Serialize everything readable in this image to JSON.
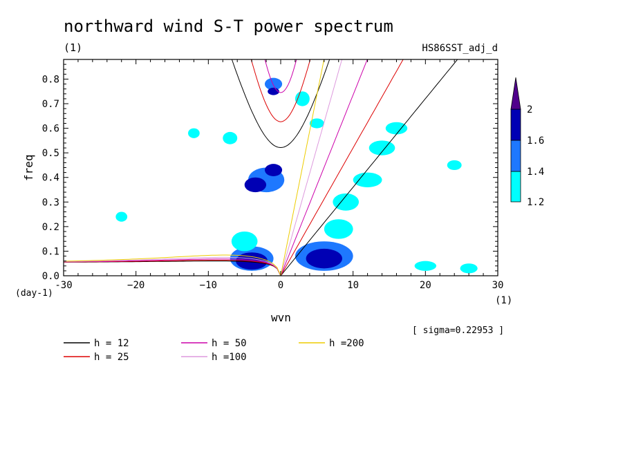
{
  "chart_data": {
    "type": "heatmap",
    "title": "northward wind S-T power spectrum",
    "subtitle_left": "(1)",
    "subtitle_right": "HS86SST_adj_d",
    "xlabel": "wvn",
    "x_unit": "(1)",
    "ylabel": "freq",
    "y_unit": "(day-1)",
    "xlim": [
      -30,
      30
    ],
    "ylim": [
      0,
      0.88
    ],
    "x_ticks": [
      -30,
      -20,
      -10,
      0,
      10,
      20,
      30
    ],
    "x_tick_labels": [
      "-30",
      "−20",
      "−10",
      "0",
      "10",
      "20",
      "30"
    ],
    "y_ticks": [
      0,
      0.1,
      0.2,
      0.3,
      0.4,
      0.5,
      0.6,
      0.7,
      0.8
    ],
    "y_tick_labels": [
      "0.0",
      "0.1",
      "0.2",
      "0.3",
      "0.4",
      "0.5",
      "0.6",
      "0.7",
      "0.8"
    ],
    "sigma_text": "[ sigma=0.22953 ]",
    "colorbar": {
      "levels": [
        1.2,
        1.4,
        1.6,
        2
      ],
      "level_labels": [
        "1.2",
        "1.4",
        "1.6",
        "2"
      ],
      "colors": [
        "#00ffff",
        "#1e78ff",
        "#0000b4",
        "#50008c"
      ]
    },
    "blobs": [
      {
        "x": -2,
        "y": 0.39,
        "rx": 2.5,
        "ry": 0.05,
        "level": 2
      },
      {
        "x": -3.5,
        "y": 0.37,
        "rx": 1.5,
        "ry": 0.03,
        "level": 3
      },
      {
        "x": -1,
        "y": 0.43,
        "rx": 1.2,
        "ry": 0.025,
        "level": 3
      },
      {
        "x": -4,
        "y": 0.07,
        "rx": 3,
        "ry": 0.05,
        "level": 2
      },
      {
        "x": -4,
        "y": 0.06,
        "rx": 2.2,
        "ry": 0.035,
        "level": 3
      },
      {
        "x": -5,
        "y": 0.14,
        "rx": 1.8,
        "ry": 0.04,
        "level": 1
      },
      {
        "x": 6,
        "y": 0.08,
        "rx": 4,
        "ry": 0.06,
        "level": 2
      },
      {
        "x": 6,
        "y": 0.07,
        "rx": 2.5,
        "ry": 0.04,
        "level": 3
      },
      {
        "x": 8,
        "y": 0.19,
        "rx": 2,
        "ry": 0.04,
        "level": 1
      },
      {
        "x": 9,
        "y": 0.3,
        "rx": 1.8,
        "ry": 0.035,
        "level": 1
      },
      {
        "x": 12,
        "y": 0.39,
        "rx": 2,
        "ry": 0.03,
        "level": 1
      },
      {
        "x": 14,
        "y": 0.52,
        "rx": 1.8,
        "ry": 0.03,
        "level": 1
      },
      {
        "x": 16,
        "y": 0.6,
        "rx": 1.5,
        "ry": 0.025,
        "level": 1
      },
      {
        "x": -1,
        "y": 0.78,
        "rx": 1.2,
        "ry": 0.025,
        "level": 2
      },
      {
        "x": -1,
        "y": 0.75,
        "rx": 0.8,
        "ry": 0.015,
        "level": 3
      },
      {
        "x": 3,
        "y": 0.72,
        "rx": 1,
        "ry": 0.03,
        "level": 1
      },
      {
        "x": -7,
        "y": 0.56,
        "rx": 1,
        "ry": 0.025,
        "level": 1
      },
      {
        "x": -12,
        "y": 0.58,
        "rx": 0.8,
        "ry": 0.02,
        "level": 1
      },
      {
        "x": 5,
        "y": 0.62,
        "rx": 1,
        "ry": 0.02,
        "level": 1
      },
      {
        "x": 20,
        "y": 0.04,
        "rx": 1.5,
        "ry": 0.02,
        "level": 1
      },
      {
        "x": 26,
        "y": 0.03,
        "rx": 1.2,
        "ry": 0.02,
        "level": 1
      },
      {
        "x": -22,
        "y": 0.24,
        "rx": 0.8,
        "ry": 0.02,
        "level": 1
      },
      {
        "x": 24,
        "y": 0.45,
        "rx": 1,
        "ry": 0.02,
        "level": 1
      }
    ],
    "dispersion_curves": [
      {
        "name": "h = 12",
        "color": "#000000",
        "h": 12
      },
      {
        "name": "h = 25",
        "color": "#dd0000",
        "h": 25
      },
      {
        "name": "h = 50",
        "color": "#cc00aa",
        "h": 50
      },
      {
        "name": "h =100",
        "color": "#dd99dd",
        "h": 100
      },
      {
        "name": "h =200",
        "color": "#eecc00",
        "h": 200
      }
    ]
  },
  "legend": [
    {
      "label": "h = 12",
      "color": "#000000"
    },
    {
      "label": "h = 50",
      "color": "#cc00aa"
    },
    {
      "label": "h =200",
      "color": "#eecc00"
    },
    {
      "label": "h = 25",
      "color": "#dd0000"
    },
    {
      "label": "h =100",
      "color": "#dd99dd"
    }
  ]
}
